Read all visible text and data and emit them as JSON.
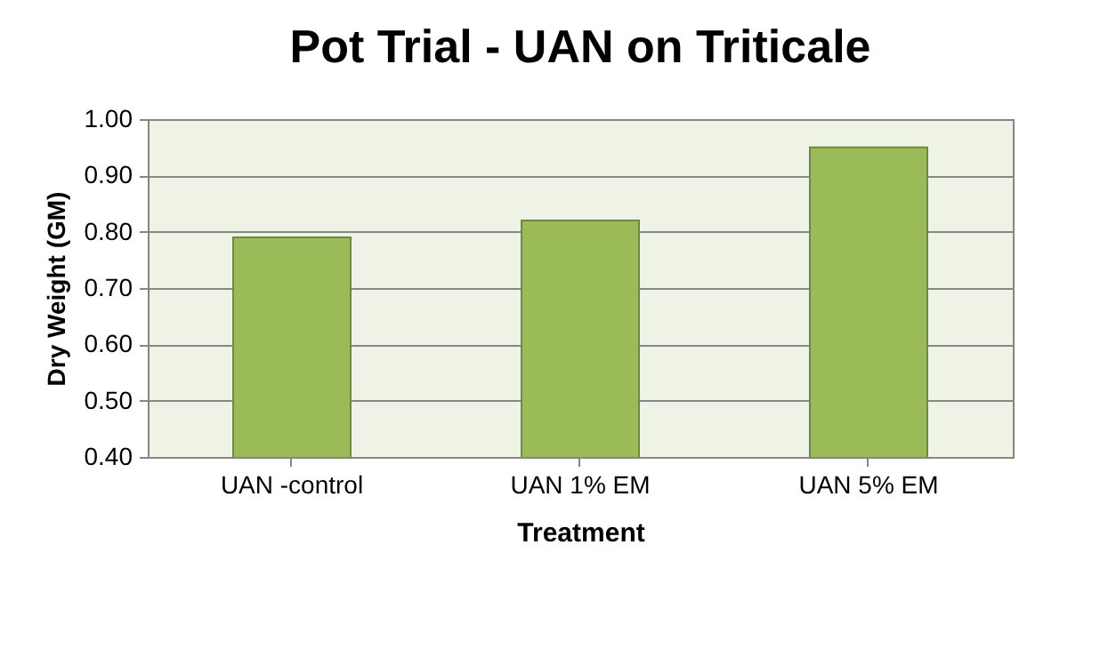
{
  "chart_data": {
    "type": "bar",
    "title": "Pot Trial - UAN on Triticale",
    "xlabel": "Treatment",
    "ylabel": "Dry Weight (GM)",
    "categories": [
      "UAN -control",
      "UAN 1% EM",
      "UAN 5% EM"
    ],
    "values": [
      0.79,
      0.82,
      0.95
    ],
    "color": "#9bbb59",
    "ylim": [
      0.4,
      1.0
    ],
    "yticks": [
      {
        "value": 0.4,
        "label": "0.40"
      },
      {
        "value": 0.5,
        "label": "0.50"
      },
      {
        "value": 0.6,
        "label": "0.60"
      },
      {
        "value": 0.7,
        "label": "0.70"
      },
      {
        "value": 0.8,
        "label": "0.80"
      },
      {
        "value": 0.9,
        "label": "0.90"
      },
      {
        "value": 1.0,
        "label": "1.00"
      }
    ],
    "grid": "y"
  }
}
